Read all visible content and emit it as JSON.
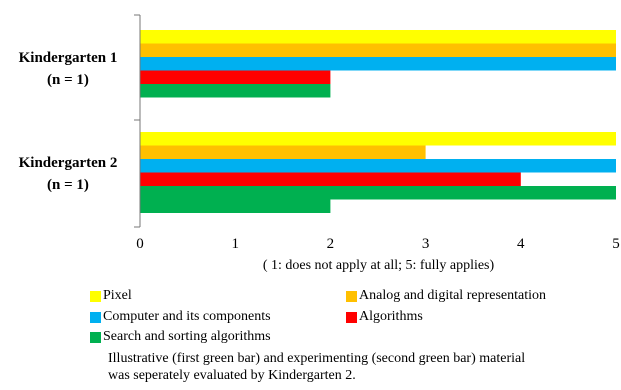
{
  "chart_data": {
    "type": "bar",
    "orientation": "horizontal",
    "groups": [
      {
        "label_line1": "Kindergarten 1",
        "label_line2": "(n = 1)",
        "bars": [
          {
            "series": "Pixel",
            "value": 5
          },
          {
            "series": "Analog and digital representation",
            "value": 5
          },
          {
            "series": "Computer and its components",
            "value": 5
          },
          {
            "series": "Algorithms",
            "value": 2
          },
          {
            "series": "Search and sorting algorithms",
            "value": 2
          }
        ]
      },
      {
        "label_line1": "Kindergarten 2",
        "label_line2": "(n = 1)",
        "bars": [
          {
            "series": "Pixel",
            "value": 5
          },
          {
            "series": "Analog and digital representation",
            "value": 3
          },
          {
            "series": "Computer and its components",
            "value": 5
          },
          {
            "series": "Algorithms",
            "value": 4
          },
          {
            "series": "Search and sorting algorithms",
            "value": 5
          },
          {
            "series": "Search and sorting algorithms",
            "value": 2
          }
        ]
      }
    ],
    "series": [
      {
        "name": "Pixel",
        "color": "#ffff00"
      },
      {
        "name": "Analog and digital representation",
        "color": "#ffc000"
      },
      {
        "name": "Computer and its components",
        "color": "#00b0f0"
      },
      {
        "name": "Algorithms",
        "color": "#ff0000"
      },
      {
        "name": "Search and sorting algorithms",
        "color": "#00b050"
      }
    ],
    "xlim": [
      0,
      5
    ],
    "xticks": [
      "0",
      "1",
      "2",
      "3",
      "4",
      "5"
    ],
    "xlabel": "( 1: does not apply at all; 5: fully applies)",
    "grid": false,
    "legend_position": "bottom"
  },
  "footnote_line1": "Illustrative (first green bar) and experimenting (second green bar) material",
  "footnote_line2": "was seperately evaluated by Kindergarten 2."
}
